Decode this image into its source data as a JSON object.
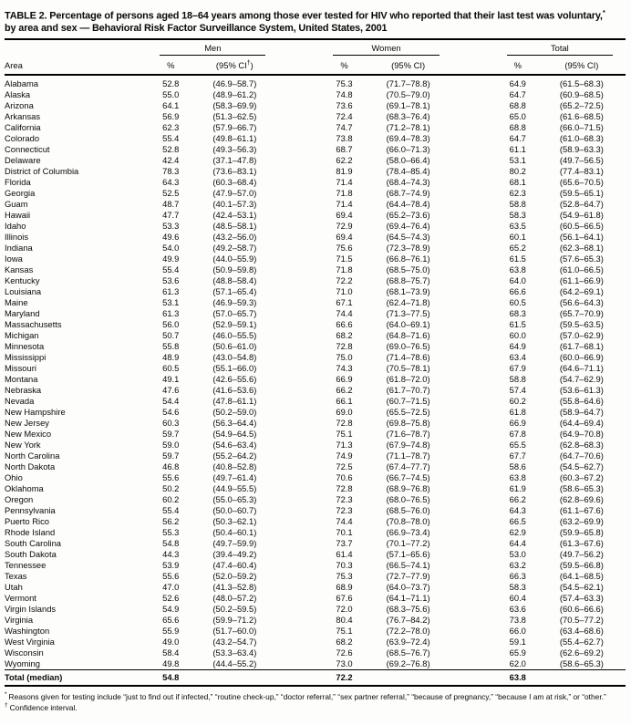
{
  "title": {
    "part1": "TABLE 2. Percentage of persons aged 18–64 years among those ever tested for HIV who reported that their last test was voluntary,",
    "sup": "*",
    "part2": "by area and sex — Behavioral Risk Factor Surveillance System, United States, 2001"
  },
  "table": {
    "area_header": "Area",
    "groups": [
      {
        "label": "Men",
        "pct": "%",
        "ci_pre": "(95% CI",
        "ci_sup": "†",
        "ci_post": ")"
      },
      {
        "label": "Women",
        "pct": "%",
        "ci": "(95% CI)"
      },
      {
        "label": "Total",
        "pct": "%",
        "ci": "(95% CI)"
      }
    ],
    "rows": [
      [
        "Alabama",
        "52.8",
        "(46.9–58.7)",
        "75.3",
        "(71.7–78.8)",
        "64.9",
        "(61.5–68.3)"
      ],
      [
        "Alaska",
        "55.0",
        "(48.9–61.2)",
        "74.8",
        "(70.5–79.0)",
        "64.7",
        "(60.9–68.5)"
      ],
      [
        "Arizona",
        "64.1",
        "(58.3–69.9)",
        "73.6",
        "(69.1–78.1)",
        "68.8",
        "(65.2–72.5)"
      ],
      [
        "Arkansas",
        "56.9",
        "(51.3–62.5)",
        "72.4",
        "(68.3–76.4)",
        "65.0",
        "(61.6–68.5)"
      ],
      [
        "California",
        "62.3",
        "(57.9–66.7)",
        "74.7",
        "(71.2–78.1)",
        "68.8",
        "(66.0–71.5)"
      ],
      [
        "Colorado",
        "55.4",
        "(49.8–61.1)",
        "73.8",
        "(69.4–78.3)",
        "64.7",
        "(61.0–68.3)"
      ],
      [
        "Connecticut",
        "52.8",
        "(49.3–56.3)",
        "68.7",
        "(66.0–71.3)",
        "61.1",
        "(58.9–63.3)"
      ],
      [
        "Delaware",
        "42.4",
        "(37.1–47.8)",
        "62.2",
        "(58.0–66.4)",
        "53.1",
        "(49.7–56.5)"
      ],
      [
        "District of Columbia",
        "78.3",
        "(73.6–83.1)",
        "81.9",
        "(78.4–85.4)",
        "80.2",
        "(77.4–83.1)"
      ],
      [
        "Florida",
        "64.3",
        "(60.3–68.4)",
        "71.4",
        "(68.4–74.3)",
        "68.1",
        "(65.6–70.5)"
      ],
      [
        "Georgia",
        "52.5",
        "(47.9–57.0)",
        "71.8",
        "(68.7–74.9)",
        "62.3",
        "(59.5–65.1)"
      ],
      [
        "Guam",
        "48.7",
        "(40.1–57.3)",
        "71.4",
        "(64.4–78.4)",
        "58.8",
        "(52.8–64.7)"
      ],
      [
        "Hawaii",
        "47.7",
        "(42.4–53.1)",
        "69.4",
        "(65.2–73.6)",
        "58.3",
        "(54.9–61.8)"
      ],
      [
        "Idaho",
        "53.3",
        "(48.5–58.1)",
        "72.9",
        "(69.4–76.4)",
        "63.5",
        "(60.5–66.5)"
      ],
      [
        "Illinois",
        "49.6",
        "(43.2–56.0)",
        "69.4",
        "(64.5–74.3)",
        "60.1",
        "(56.1–64.1)"
      ],
      [
        "Indiana",
        "54.0",
        "(49.2–58.7)",
        "75.6",
        "(72.3–78.9)",
        "65.2",
        "(62.3–68.1)"
      ],
      [
        "Iowa",
        "49.9",
        "(44.0–55.9)",
        "71.5",
        "(66.8–76.1)",
        "61.5",
        "(57.6–65.3)"
      ],
      [
        "Kansas",
        "55.4",
        "(50.9–59.8)",
        "71.8",
        "(68.5–75.0)",
        "63.8",
        "(61.0–66.5)"
      ],
      [
        "Kentucky",
        "53.6",
        "(48.8–58.4)",
        "72.2",
        "(68.8–75.7)",
        "64.0",
        "(61.1–66.9)"
      ],
      [
        "Louisiana",
        "61.3",
        "(57.1–65.4)",
        "71.0",
        "(68.1–73.9)",
        "66.6",
        "(64.2–69.1)"
      ],
      [
        "Maine",
        "53.1",
        "(46.9–59.3)",
        "67.1",
        "(62.4–71.8)",
        "60.5",
        "(56.6–64.3)"
      ],
      [
        "Maryland",
        "61.3",
        "(57.0–65.7)",
        "74.4",
        "(71.3–77.5)",
        "68.3",
        "(65.7–70.9)"
      ],
      [
        "Massachusetts",
        "56.0",
        "(52.9–59.1)",
        "66.6",
        "(64.0–69.1)",
        "61.5",
        "(59.5–63.5)"
      ],
      [
        "Michigan",
        "50.7",
        "(46.0–55.5)",
        "68.2",
        "(64.8–71.6)",
        "60.0",
        "(57.0–62.9)"
      ],
      [
        "Minnesota",
        "55.8",
        "(50.6–61.0)",
        "72.8",
        "(69.0–76.5)",
        "64.9",
        "(61.7–68.1)"
      ],
      [
        "Mississippi",
        "48.9",
        "(43.0–54.8)",
        "75.0",
        "(71.4–78.6)",
        "63.4",
        "(60.0–66.9)"
      ],
      [
        "Missouri",
        "60.5",
        "(55.1–66.0)",
        "74.3",
        "(70.5–78.1)",
        "67.9",
        "(64.6–71.1)"
      ],
      [
        "Montana",
        "49.1",
        "(42.6–55.6)",
        "66.9",
        "(61.8–72.0)",
        "58.8",
        "(54.7–62.9)"
      ],
      [
        "Nebraska",
        "47.6",
        "(41.6–53.6)",
        "66.2",
        "(61.7–70.7)",
        "57.4",
        "(53.6–61.3)"
      ],
      [
        "Nevada",
        "54.4",
        "(47.8–61.1)",
        "66.1",
        "(60.7–71.5)",
        "60.2",
        "(55.8–64.6)"
      ],
      [
        "New Hampshire",
        "54.6",
        "(50.2–59.0)",
        "69.0",
        "(65.5–72.5)",
        "61.8",
        "(58.9–64.7)"
      ],
      [
        "New Jersey",
        "60.3",
        "(56.3–64.4)",
        "72.8",
        "(69.8–75.8)",
        "66.9",
        "(64.4–69.4)"
      ],
      [
        "New Mexico",
        "59.7",
        "(54.9–64.5)",
        "75.1",
        "(71.6–78.7)",
        "67.8",
        "(64.9–70.8)"
      ],
      [
        "New York",
        "59.0",
        "(54.6–63.4)",
        "71.3",
        "(67.9–74.8)",
        "65.5",
        "(62.8–68.3)"
      ],
      [
        "North Carolina",
        "59.7",
        "(55.2–64.2)",
        "74.9",
        "(71.1–78.7)",
        "67.7",
        "(64.7–70.6)"
      ],
      [
        "North Dakota",
        "46.8",
        "(40.8–52.8)",
        "72.5",
        "(67.4–77.7)",
        "58.6",
        "(54.5–62.7)"
      ],
      [
        "Ohio",
        "55.6",
        "(49.7–61.4)",
        "70.6",
        "(66.7–74.5)",
        "63.8",
        "(60.3–67.2)"
      ],
      [
        "Oklahoma",
        "50.2",
        "(44.9–55.5)",
        "72.8",
        "(68.9–76.8)",
        "61.9",
        "(58.6–65.3)"
      ],
      [
        "Oregon",
        "60.2",
        "(55.0–65.3)",
        "72.3",
        "(68.0–76.5)",
        "66.2",
        "(62.8–69.6)"
      ],
      [
        "Pennsylvania",
        "55.4",
        "(50.0–60.7)",
        "72.3",
        "(68.5–76.0)",
        "64.3",
        "(61.1–67.6)"
      ],
      [
        "Puerto Rico",
        "56.2",
        "(50.3–62.1)",
        "74.4",
        "(70.8–78.0)",
        "66.5",
        "(63.2–69.9)"
      ],
      [
        "Rhode Island",
        "55.3",
        "(50.4–60.1)",
        "70.1",
        "(66.9–73.4)",
        "62.9",
        "(59.9–65.8)"
      ],
      [
        "South Carolina",
        "54.8",
        "(49.7–59.9)",
        "73.7",
        "(70.1–77.2)",
        "64.4",
        "(61.3–67.6)"
      ],
      [
        "South Dakota",
        "44.3",
        "(39.4–49.2)",
        "61.4",
        "(57.1–65.6)",
        "53.0",
        "(49.7–56.2)"
      ],
      [
        "Tennessee",
        "53.9",
        "(47.4–60.4)",
        "70.3",
        "(66.5–74.1)",
        "63.2",
        "(59.5–66.8)"
      ],
      [
        "Texas",
        "55.6",
        "(52.0–59.2)",
        "75.3",
        "(72.7–77.9)",
        "66.3",
        "(64.1–68.5)"
      ],
      [
        "Utah",
        "47.0",
        "(41.3–52.8)",
        "68.9",
        "(64.0–73.7)",
        "58.3",
        "(54.5–62.1)"
      ],
      [
        "Vermont",
        "52.6",
        "(48.0–57.2)",
        "67.6",
        "(64.1–71.1)",
        "60.4",
        "(57.4–63.3)"
      ],
      [
        "Virgin Islands",
        "54.9",
        "(50.2–59.5)",
        "72.0",
        "(68.3–75.6)",
        "63.6",
        "(60.6–66.6)"
      ],
      [
        "Virginia",
        "65.6",
        "(59.9–71.2)",
        "80.4",
        "(76.7–84.2)",
        "73.8",
        "(70.5–77.2)"
      ],
      [
        "Washington",
        "55.9",
        "(51.7–60.0)",
        "75.1",
        "(72.2–78.0)",
        "66.0",
        "(63.4–68.6)"
      ],
      [
        "West Virginia",
        "49.0",
        "(43.2–54.7)",
        "68.2",
        "(63.9–72.4)",
        "59.1",
        "(55.4–62.7)"
      ],
      [
        "Wisconsin",
        "58.4",
        "(53.3–63.4)",
        "72.6",
        "(68.5–76.7)",
        "65.9",
        "(62.6–69.2)"
      ],
      [
        "Wyoming",
        "49.8",
        "(44.4–55.2)",
        "73.0",
        "(69.2–76.8)",
        "62.0",
        "(58.6–65.3)"
      ]
    ],
    "total_row": {
      "area": "Total (median)",
      "men_pct": "54.8",
      "women_pct": "72.2",
      "total_pct": "63.8"
    }
  },
  "footnotes": {
    "star_marker": "*",
    "star_text": "Reasons given for testing include “just to find out if infected,” “routine check-up,” “doctor referral,” “sex partner referral,” “because of pregnancy,” “because I am at risk,” or “other.”",
    "dagger_marker": "†",
    "dagger_text": "Confidence interval."
  }
}
